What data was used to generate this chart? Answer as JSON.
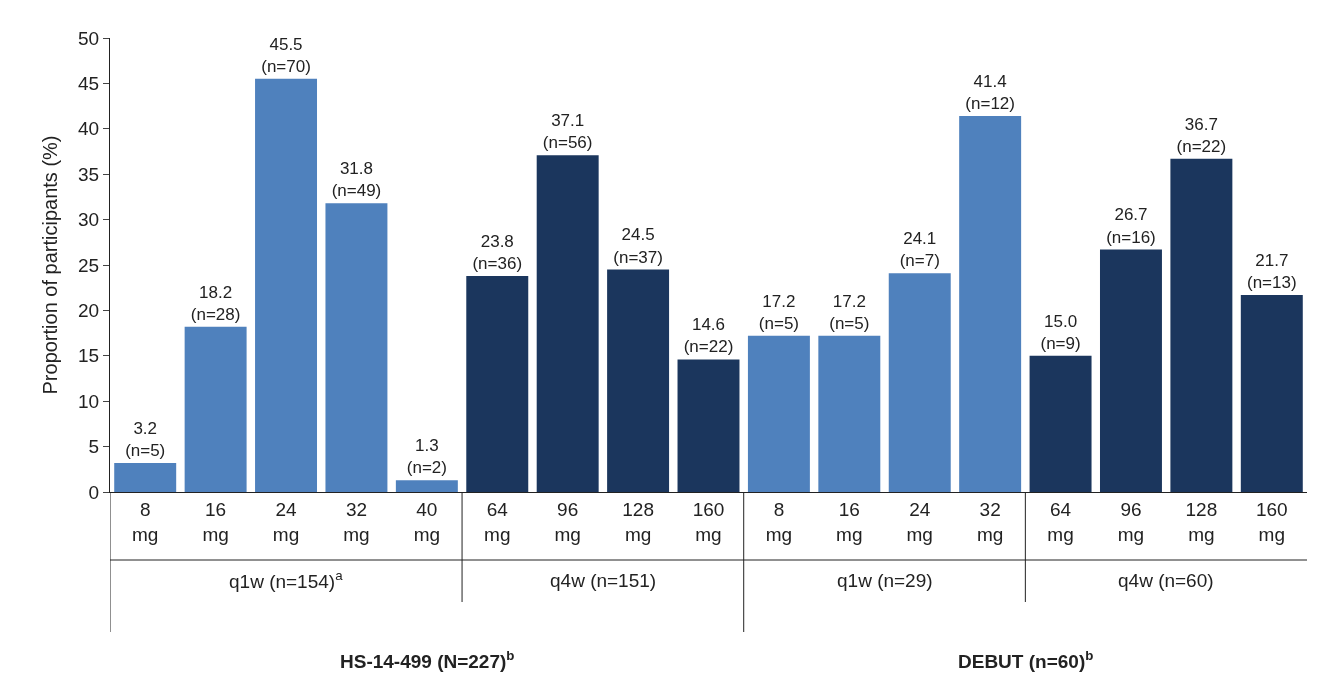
{
  "chart_data": {
    "type": "bar",
    "ylabel": "Proportion of participants (%)",
    "categories": [
      "8 mg",
      "16 mg",
      "24 mg",
      "32 mg",
      "40 mg",
      "64 mg",
      "96 mg",
      "128 mg",
      "160 mg",
      "8 mg",
      "16 mg",
      "24 mg",
      "32 mg",
      "64 mg",
      "96 mg",
      "128 mg",
      "160 mg"
    ],
    "values": [
      3.2,
      18.2,
      45.5,
      31.8,
      1.3,
      23.8,
      37.1,
      24.5,
      14.6,
      17.2,
      17.2,
      24.1,
      41.4,
      15.0,
      26.7,
      36.7,
      21.7
    ],
    "colors": [
      "#4f81bd",
      "#4f81bd",
      "#4f81bd",
      "#4f81bd",
      "#4f81bd",
      "#1b365d",
      "#1b365d",
      "#1b365d",
      "#1b365d",
      "#4f81bd",
      "#4f81bd",
      "#4f81bd",
      "#4f81bd",
      "#1b365d",
      "#1b365d",
      "#1b365d",
      "#1b365d"
    ],
    "value_labels": [
      "3.2\n(n=5)",
      "18.2\n(n=28)",
      "45.5\n(n=70)",
      "31.8\n(n=49)",
      "1.3\n(n=2)",
      "23.8\n(n=36)",
      "37.1\n(n=56)",
      "24.5\n(n=37)",
      "14.6\n(n=22)",
      "17.2\n(n=5)",
      "17.2\n(n=5)",
      "24.1\n(n=7)",
      "41.4\n(n=12)",
      "15.0\n(n=9)",
      "26.7\n(n=16)",
      "36.7\n(n=22)",
      "21.7\n(n=13)"
    ],
    "ylim": [
      0,
      50
    ],
    "yticks": [
      0,
      5,
      10,
      15,
      20,
      25,
      30,
      35,
      40,
      45,
      50
    ],
    "annotations": [
      "q1w (n=154)$^{a}$",
      "q4w (n=151)",
      "q1w (n=29)",
      "q4w (n=60)",
      "HS-14-499 (N=227)$^{b}$",
      "DEBUT (n=60)$^{b}$"
    ]
  }
}
